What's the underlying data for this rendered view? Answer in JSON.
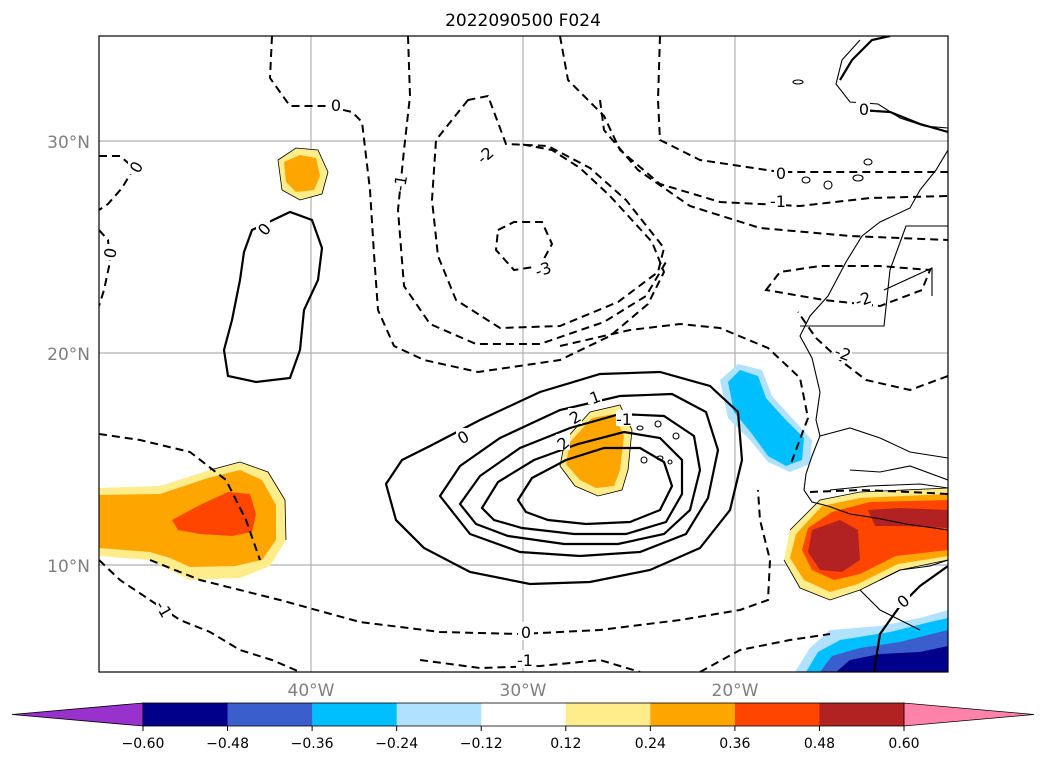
{
  "title": "2022090500 F024",
  "axes": {
    "lat_ticks": [
      "30°N",
      "20°N",
      "10°N"
    ],
    "lon_ticks": [
      "40°W",
      "30°W",
      "20°W"
    ]
  },
  "colorbar": {
    "ticks": [
      "−0.60",
      "−0.48",
      "−0.36",
      "−0.24",
      "−0.12",
      "0.12",
      "0.24",
      "0.36",
      "0.48",
      "0.60"
    ],
    "colors": [
      "#9932cc",
      "#00008b",
      "#3a5fcd",
      "#00bfff",
      "#b0e2ff",
      "#ffffff",
      "#ffec8b",
      "#ffa500",
      "#ff4500",
      "#b22222",
      "#ff82ab"
    ]
  },
  "contour_labels": [
    "0",
    "0",
    "0",
    "0",
    "0",
    "-1",
    "-2",
    "-3",
    "-1",
    "-2",
    "-2",
    "0",
    "-1",
    "0",
    "1",
    "2",
    "2",
    "-1",
    "0",
    "-1",
    "0"
  ]
}
